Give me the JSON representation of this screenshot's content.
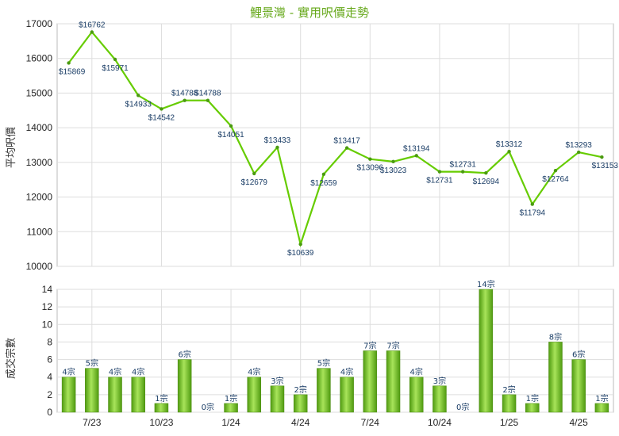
{
  "chart_data": [
    {
      "type": "line",
      "title": "鯉景灣 - 實用呎價走勢",
      "ylabel": "平均呎價",
      "ylim": [
        10000,
        17000
      ],
      "yticks": [
        10000,
        11000,
        12000,
        13000,
        14000,
        15000,
        16000,
        17000
      ],
      "grid": true,
      "line_color": "#66cc00",
      "points": [
        {
          "v": 15869,
          "label": "$15869"
        },
        {
          "v": 16762,
          "label": "$16762"
        },
        {
          "v": 15971,
          "label": "$15971"
        },
        {
          "v": 14933,
          "label": "$14933"
        },
        {
          "v": 14542,
          "label": "$14542"
        },
        {
          "v": 14788,
          "label": "$14788"
        },
        {
          "v": 14788,
          "label": "$14788"
        },
        {
          "v": 14051,
          "label": "$14051"
        },
        {
          "v": 12679,
          "label": "$12679"
        },
        {
          "v": 13433,
          "label": "$13433"
        },
        {
          "v": 10639,
          "label": "$10639"
        },
        {
          "v": 12659,
          "label": "$12659"
        },
        {
          "v": 13417,
          "label": "$13417"
        },
        {
          "v": 13096,
          "label": "$13096"
        },
        {
          "v": 13023,
          "label": "$13023"
        },
        {
          "v": 13194,
          "label": "$13194"
        },
        {
          "v": 12731,
          "label": "$12731"
        },
        {
          "v": 12731,
          "label": "$12731"
        },
        {
          "v": 12694,
          "label": "$12694"
        },
        {
          "v": 13312,
          "label": "$13312"
        },
        {
          "v": 11794,
          "label": "$11794"
        },
        {
          "v": 12764,
          "label": "$12764"
        },
        {
          "v": 13293,
          "label": "$13293"
        },
        {
          "v": 13153,
          "label": "$13153"
        }
      ]
    },
    {
      "type": "bar",
      "ylabel": "成交宗數",
      "ylim": [
        0,
        14
      ],
      "yticks": [
        0,
        2,
        4,
        6,
        8,
        10,
        12,
        14
      ],
      "grid": true,
      "bar_color": "#77cc22",
      "x_tick_labels": [
        "7/23",
        "10/23",
        "1/24",
        "4/24",
        "7/24",
        "10/24",
        "1/25",
        "4/25"
      ],
      "bars": [
        {
          "v": 4,
          "label": "4宗"
        },
        {
          "v": 5,
          "label": "5宗"
        },
        {
          "v": 4,
          "label": "4宗"
        },
        {
          "v": 4,
          "label": "4宗"
        },
        {
          "v": 1,
          "label": "1宗"
        },
        {
          "v": 6,
          "label": "6宗"
        },
        {
          "v": 0,
          "label": "0宗"
        },
        {
          "v": 1,
          "label": "1宗"
        },
        {
          "v": 4,
          "label": "4宗"
        },
        {
          "v": 3,
          "label": "3宗"
        },
        {
          "v": 2,
          "label": "2宗"
        },
        {
          "v": 5,
          "label": "5宗"
        },
        {
          "v": 4,
          "label": "4宗"
        },
        {
          "v": 7,
          "label": "7宗"
        },
        {
          "v": 7,
          "label": "7宗"
        },
        {
          "v": 4,
          "label": "4宗"
        },
        {
          "v": 3,
          "label": "3宗"
        },
        {
          "v": 0,
          "label": "0宗"
        },
        {
          "v": 14,
          "label": "14宗"
        },
        {
          "v": 2,
          "label": "2宗"
        },
        {
          "v": 1,
          "label": "1宗"
        },
        {
          "v": 8,
          "label": "8宗"
        },
        {
          "v": 6,
          "label": "6宗"
        },
        {
          "v": 1,
          "label": "1宗"
        }
      ]
    }
  ]
}
